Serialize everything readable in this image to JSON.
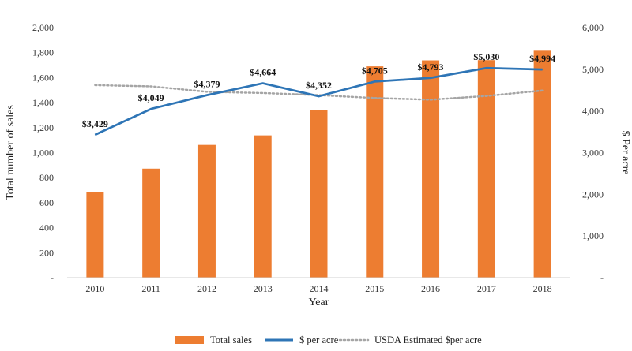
{
  "chart_data": {
    "type": "bar+line",
    "categories": [
      "2010",
      "2011",
      "2012",
      "2013",
      "2014",
      "2015",
      "2016",
      "2017",
      "2018"
    ],
    "xlabel": "Year",
    "ylabel_left": "Total number of sales",
    "ylabel_right": "$ Per acre",
    "ylim_left": [
      0,
      2000
    ],
    "ylim_right": [
      0,
      6000
    ],
    "yticks_left": [
      "-",
      "200",
      "400",
      "600",
      "800",
      "1,000",
      "1,200",
      "1,400",
      "1,600",
      "1,800",
      "2,000"
    ],
    "yticks_right": [
      "-",
      "1,000",
      "2,000",
      "3,000",
      "4,000",
      "5,000",
      "6,000"
    ],
    "series": [
      {
        "name": "Total sales",
        "type": "bar",
        "axis": "left",
        "color": "#ED7D31",
        "values": [
          685,
          872,
          1062,
          1138,
          1338,
          1690,
          1738,
          1740,
          1815
        ]
      },
      {
        "name": "$ per acre",
        "type": "line",
        "axis": "right",
        "color": "#2E75B6",
        "values": [
          3429,
          4049,
          4379,
          4664,
          4352,
          4705,
          4793,
          5030,
          4994
        ],
        "data_labels": [
          "$3,429",
          "$4,049",
          "$4,379",
          "$4,664",
          "$4,352",
          "$4,705",
          "$4,793",
          "$5,030",
          "$4,994"
        ]
      },
      {
        "name": "USDA Estimated $per acre",
        "type": "line",
        "style": "dotted",
        "axis": "right",
        "color": "#A5A5A5",
        "values": [
          4620,
          4590,
          4460,
          4430,
          4380,
          4310,
          4270,
          4360,
          4490
        ]
      }
    ],
    "legend_position": "bottom"
  }
}
